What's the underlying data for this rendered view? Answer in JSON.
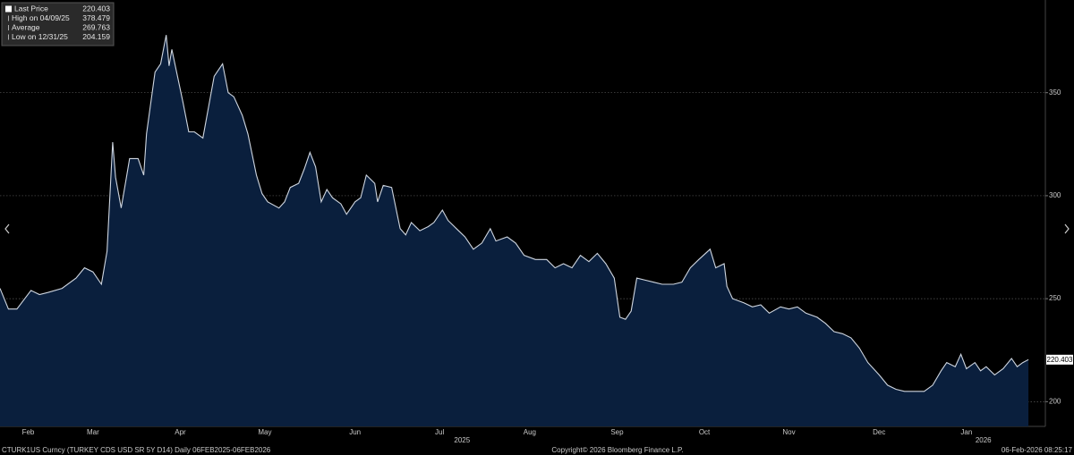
{
  "chart_data": {
    "type": "area",
    "series": [
      {
        "name": "Last Price",
        "color": "#cfd6e0",
        "fill": "#0a1f3d",
        "x": [
          0,
          3,
          6,
          11,
          14,
          17,
          22,
          27,
          30,
          33,
          36,
          38,
          40,
          41,
          43,
          45,
          46,
          49,
          51,
          52,
          55,
          57,
          59,
          60,
          61,
          63,
          65,
          67,
          69,
          72,
          74,
          76,
          79,
          81,
          83,
          86,
          88,
          91,
          93,
          95,
          99,
          101,
          103,
          106,
          108,
          110,
          112,
          114,
          116,
          118,
          121,
          123,
          126,
          128,
          130,
          133,
          134,
          136,
          139,
          142,
          144,
          146,
          149,
          152,
          154,
          157,
          159,
          162,
          165,
          168,
          171,
          174,
          176,
          180,
          183,
          186,
          190,
          194,
          197,
          200,
          203,
          206,
          209,
          212,
          215,
          218,
          220,
          222,
          224,
          226,
          229,
          232,
          235,
          239,
          242,
          245,
          248,
          252,
          254,
          257,
          258,
          260,
          264,
          267,
          270,
          273,
          277,
          280,
          283,
          286,
          290,
          293,
          296,
          299,
          302,
          305,
          308,
          312,
          315,
          318,
          321,
          324,
          328,
          331,
          334,
          336,
          339,
          341,
          343,
          346,
          348,
          350,
          353,
          356,
          359,
          361,
          363,
          365
        ],
        "values": [
          255,
          245,
          245,
          254,
          252,
          253,
          255,
          260,
          265,
          263,
          257,
          273,
          326,
          309,
          294,
          310,
          318,
          318,
          310,
          330,
          360,
          364,
          378,
          363,
          371,
          358,
          345,
          331,
          331,
          328,
          343,
          358,
          364,
          350,
          348,
          339,
          330,
          310,
          301,
          297,
          294,
          297,
          304,
          306,
          313,
          321,
          314,
          297,
          303,
          299,
          296,
          291,
          297,
          299,
          310,
          306,
          297,
          305,
          304,
          284,
          281,
          287,
          283,
          285,
          287,
          293,
          288,
          284,
          280,
          274,
          277,
          284,
          278,
          280,
          277,
          271,
          269,
          269,
          265,
          267,
          265,
          271,
          268,
          272,
          267,
          260,
          241,
          240,
          244,
          260,
          259,
          258,
          257,
          257,
          258,
          265,
          269,
          274,
          265,
          267,
          256,
          250,
          248,
          246,
          247,
          243,
          246,
          245,
          246,
          243,
          241,
          238,
          234,
          233,
          231,
          226,
          219,
          213,
          208,
          206,
          205,
          205,
          205,
          208,
          215,
          219,
          217,
          223,
          216,
          219,
          215,
          217,
          213,
          216,
          221,
          217,
          219,
          220.4
        ]
      }
    ],
    "xlim": [
      0,
      371
    ],
    "ylim": [
      188,
      395
    ],
    "yticks": [
      200,
      250,
      300,
      350
    ],
    "xticks": [
      {
        "value": 10,
        "label": "Feb"
      },
      {
        "value": 33,
        "label": "Mar"
      },
      {
        "value": 64,
        "label": "Apr"
      },
      {
        "value": 94,
        "label": "May"
      },
      {
        "value": 126,
        "label": "Jun"
      },
      {
        "value": 156,
        "label": "Jul"
      },
      {
        "value": 188,
        "label": "Aug"
      },
      {
        "value": 219,
        "label": "Sep"
      },
      {
        "value": 250,
        "label": "Oct"
      },
      {
        "value": 280,
        "label": "Nov"
      },
      {
        "value": 312,
        "label": "Dec"
      },
      {
        "value": 343,
        "label": "Jan"
      }
    ],
    "year_ticks": [
      {
        "value": 164,
        "label": "2025"
      },
      {
        "value": 349,
        "label": "2026"
      }
    ],
    "grid": true,
    "last_label": "220.403",
    "legend": [
      {
        "label": "Last Price",
        "value": "220.403"
      },
      {
        "label": "High on 04/09/25",
        "value": "378.479"
      },
      {
        "label": "Average",
        "value": "269.763"
      },
      {
        "label": "Low on 12/31/25",
        "value": "204.159"
      }
    ],
    "footer_left": "CTURK1US Curncy (TURKEY CDS USD SR 5Y D14) Daily 06FEB2025-06FEB2026",
    "footer_center": "Copyright© 2026 Bloomberg Finance L.P.",
    "footer_right": "06-Feb-2026 08:25:17"
  }
}
